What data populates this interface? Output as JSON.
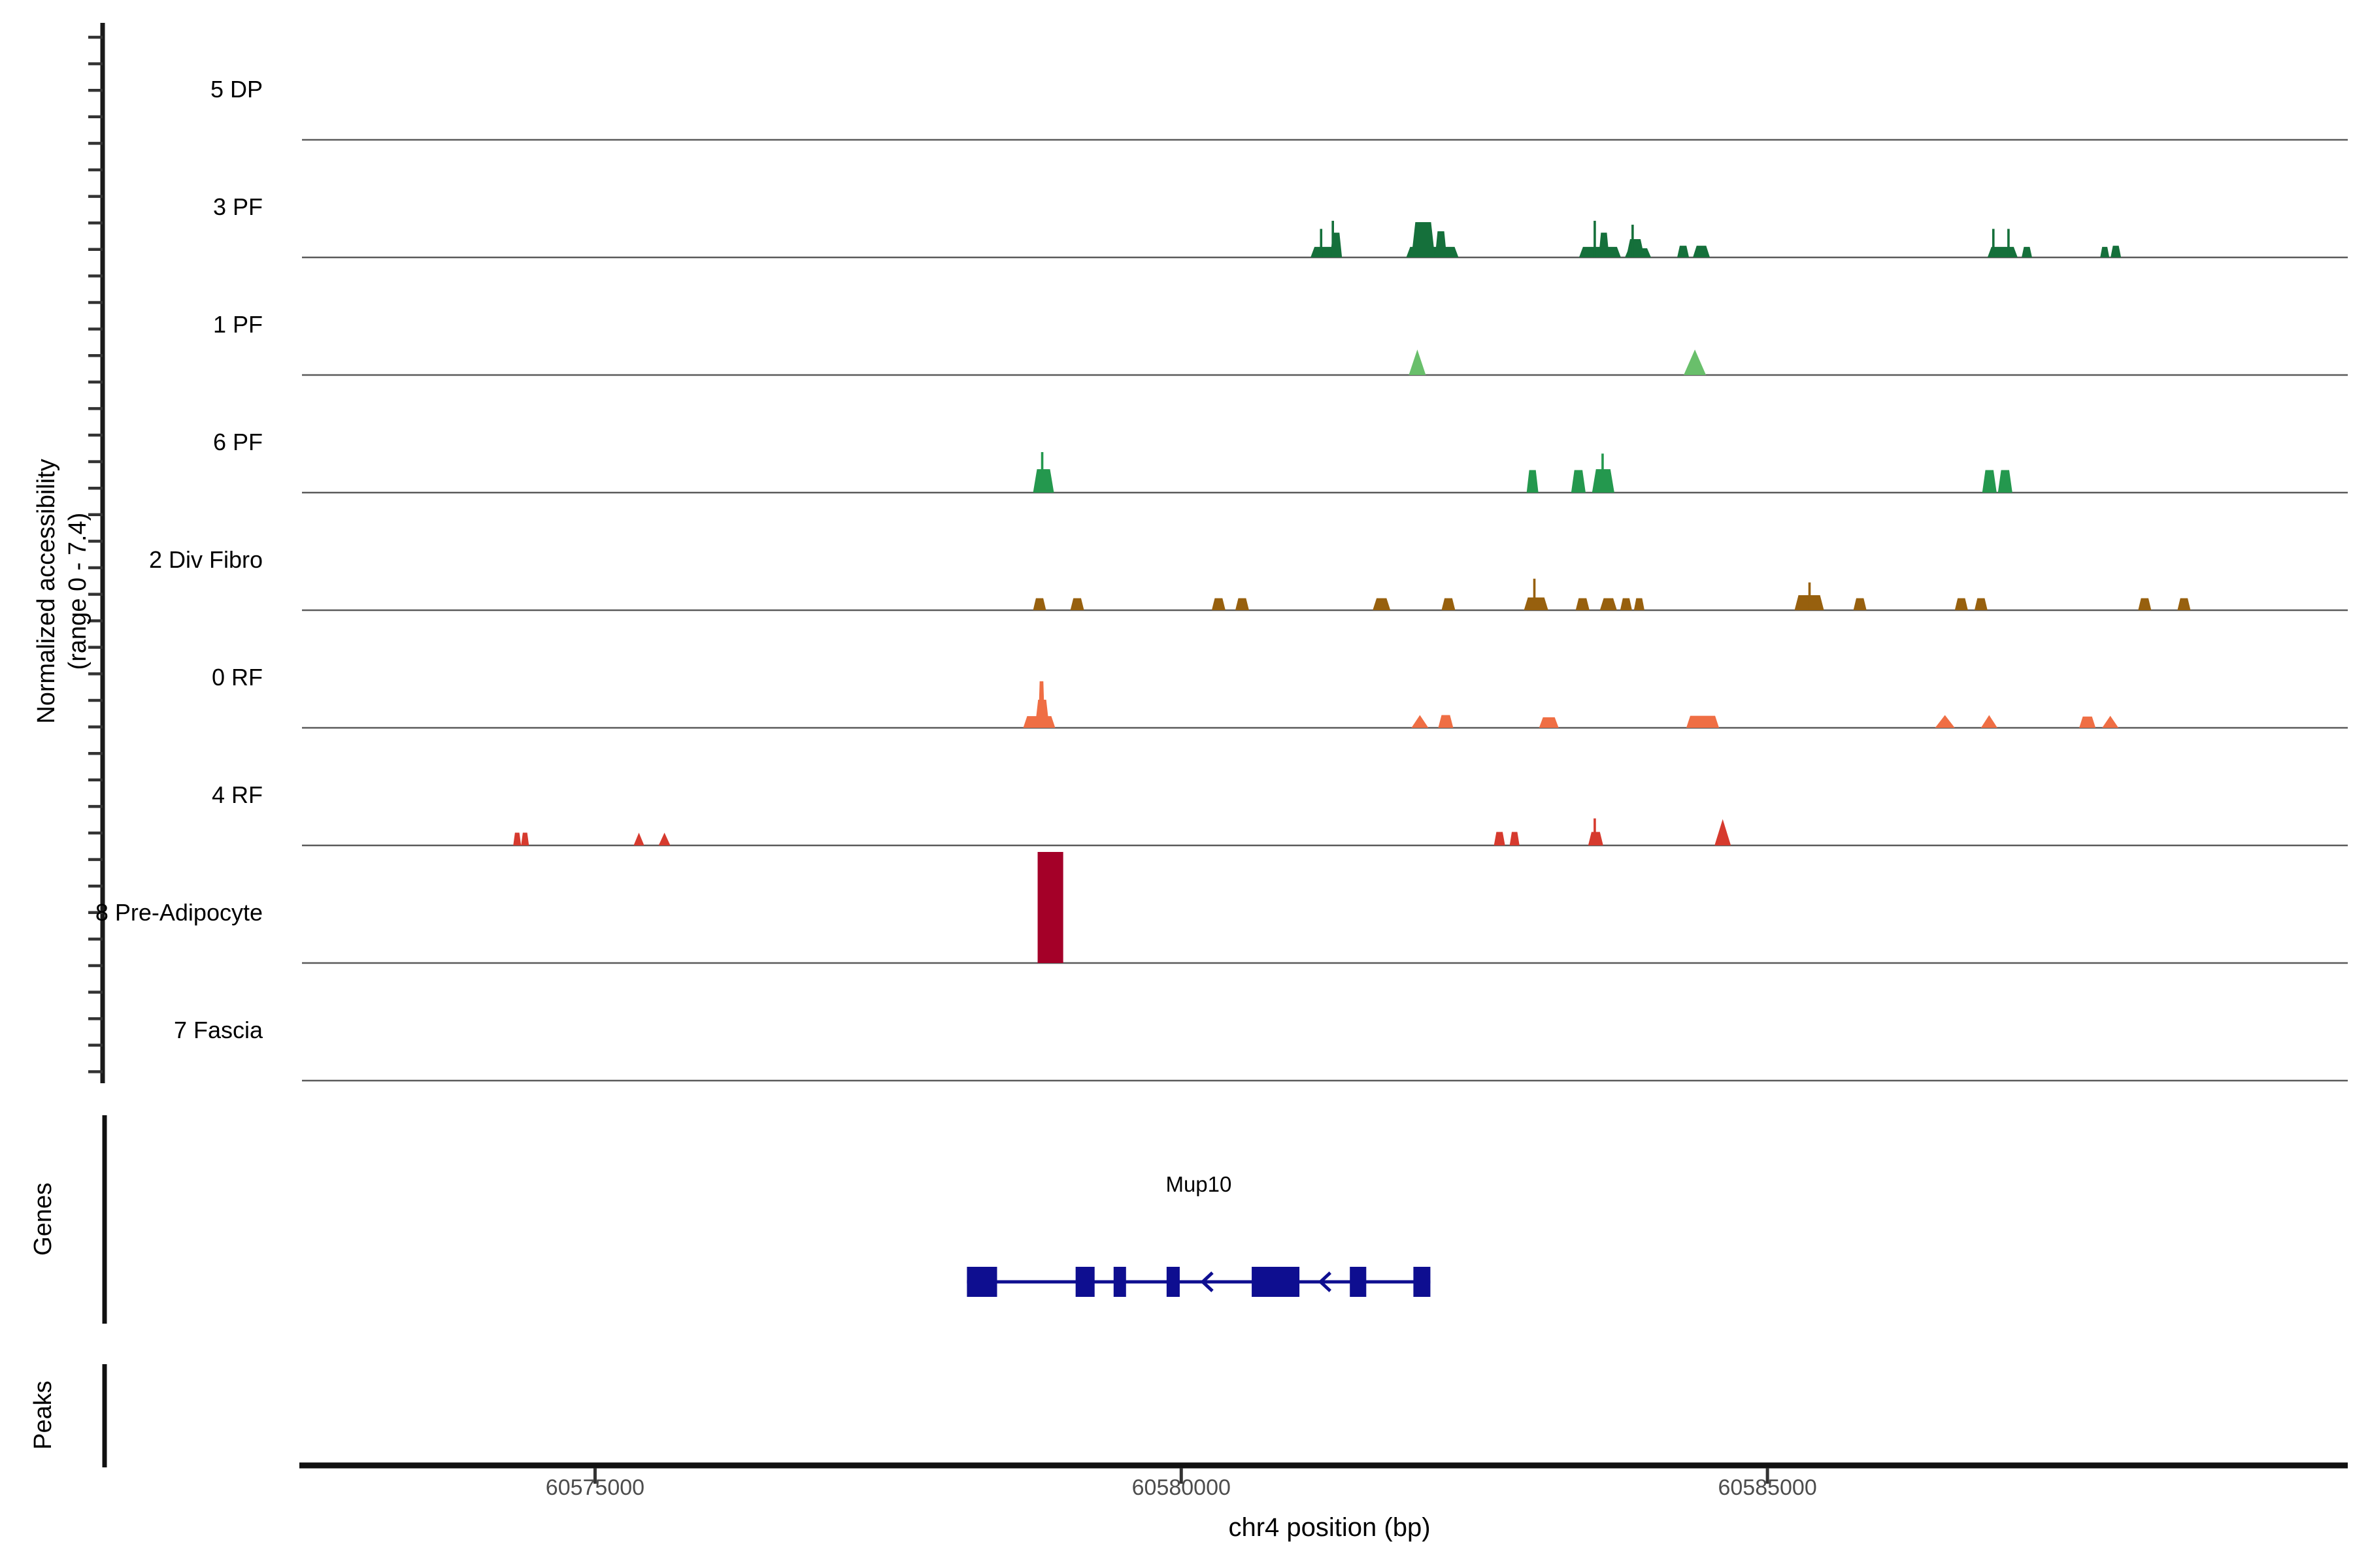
{
  "chart_data": {
    "type": "genome-tracks",
    "region": {
      "chrom": "chr4",
      "start": 60572500,
      "end": 60589950
    },
    "xaxis": {
      "title": "chr4 position (bp)",
      "ticks": [
        60575000,
        60580000,
        60585000
      ],
      "tick_labels": [
        "60575000",
        "60580000",
        "60585000"
      ]
    },
    "yaxis": {
      "label_line1": "Normalized accessibility",
      "label_line2": "(range 0 - 7.4)",
      "range": [
        0,
        7.4
      ]
    },
    "sections": {
      "genes_label": "Genes",
      "peaks_label": "Peaks"
    },
    "tracks": [
      {
        "label": "5 DP",
        "color": "#0c5f33",
        "peaks": []
      },
      {
        "label": "3 PF",
        "color": "#15703b",
        "peaks": [
          {
            "t": "rect",
            "s": 60581103,
            "e": 60581371,
            "v": 0.7
          },
          {
            "t": "rect",
            "s": 60581271,
            "e": 60581371,
            "v": 1.65
          },
          {
            "t": "spike",
            "p": 60581193,
            "v": 1.9
          },
          {
            "t": "spike",
            "p": 60581293,
            "v": 2.44
          },
          {
            "t": "rect",
            "s": 60581919,
            "e": 60582365,
            "v": 0.7
          },
          {
            "t": "rect",
            "s": 60581963,
            "e": 60582164,
            "v": 2.35
          },
          {
            "t": "rect",
            "s": 60582164,
            "e": 60582265,
            "v": 1.74
          },
          {
            "t": "rect",
            "s": 60583393,
            "e": 60583750,
            "v": 0.7
          },
          {
            "t": "rect",
            "s": 60583560,
            "e": 60583650,
            "v": 1.65
          },
          {
            "t": "spike",
            "p": 60583527,
            "v": 2.44
          },
          {
            "t": "rect",
            "s": 60583784,
            "e": 60584007,
            "v": 0.61
          },
          {
            "t": "rect",
            "s": 60583795,
            "e": 60583951,
            "v": 1.22
          },
          {
            "t": "spike",
            "p": 60583850,
            "v": 2.18
          },
          {
            "t": "rect",
            "s": 60584230,
            "e": 60584331,
            "v": 0.78
          },
          {
            "t": "rect",
            "s": 60584364,
            "e": 60584509,
            "v": 0.78
          },
          {
            "t": "rect",
            "s": 60586877,
            "e": 60587134,
            "v": 0.7
          },
          {
            "t": "spike",
            "p": 60586927,
            "v": 1.9
          },
          {
            "t": "spike",
            "p": 60587056,
            "v": 1.9
          },
          {
            "t": "rect",
            "s": 60587168,
            "e": 60587257,
            "v": 0.7
          },
          {
            "t": "rect",
            "s": 60587838,
            "e": 60587916,
            "v": 0.7
          },
          {
            "t": "rect",
            "s": 60587927,
            "e": 60588016,
            "v": 0.78
          }
        ]
      },
      {
        "label": "1 PF",
        "color": "#69bf6b",
        "peaks": [
          {
            "t": "tri",
            "s": 60581941,
            "e": 60582086,
            "v": 1.7
          },
          {
            "t": "tri",
            "s": 60584286,
            "e": 60584476,
            "v": 1.7
          }
        ]
      },
      {
        "label": "6 PF",
        "color": "#24984e",
        "peaks": [
          {
            "t": "rect",
            "s": 60578736,
            "e": 60578914,
            "v": 1.56
          },
          {
            "t": "spike",
            "p": 60578814,
            "v": 2.7
          },
          {
            "t": "rect",
            "s": 60582946,
            "e": 60583046,
            "v": 1.5
          },
          {
            "t": "rect",
            "s": 60583326,
            "e": 60583449,
            "v": 1.5
          },
          {
            "t": "rect",
            "s": 60583504,
            "e": 60583694,
            "v": 1.56
          },
          {
            "t": "spike",
            "p": 60583594,
            "v": 2.6
          },
          {
            "t": "rect",
            "s": 60586832,
            "e": 60586955,
            "v": 1.5
          },
          {
            "t": "rect",
            "s": 60586966,
            "e": 60587089,
            "v": 1.5
          }
        ]
      },
      {
        "label": "2 Div Fibro",
        "color": "#97600e",
        "peaks": [
          {
            "t": "rect",
            "s": 60578736,
            "e": 60578847,
            "v": 0.8
          },
          {
            "t": "rect",
            "s": 60579054,
            "e": 60579171,
            "v": 0.8
          },
          {
            "t": "rect",
            "s": 60580260,
            "e": 60580377,
            "v": 0.8
          },
          {
            "t": "rect",
            "s": 60580461,
            "e": 60580578,
            "v": 0.8
          },
          {
            "t": "rect",
            "s": 60581633,
            "e": 60581784,
            "v": 0.8
          },
          {
            "t": "rect",
            "s": 60582220,
            "e": 60582337,
            "v": 0.8
          },
          {
            "t": "rect",
            "s": 60582923,
            "e": 60583130,
            "v": 0.85
          },
          {
            "t": "spike",
            "p": 60583012,
            "v": 2.1
          },
          {
            "t": "rect",
            "s": 60583364,
            "e": 60583482,
            "v": 0.8
          },
          {
            "t": "rect",
            "s": 60583571,
            "e": 60583716,
            "v": 0.8
          },
          {
            "t": "rect",
            "s": 60583744,
            "e": 60583845,
            "v": 0.8
          },
          {
            "t": "rect",
            "s": 60583861,
            "e": 60583951,
            "v": 0.8
          },
          {
            "t": "rect",
            "s": 60585231,
            "e": 60585482,
            "v": 1.0
          },
          {
            "t": "spike",
            "p": 60585359,
            "v": 1.85
          },
          {
            "t": "rect",
            "s": 60585733,
            "e": 60585845,
            "v": 0.8
          },
          {
            "t": "rect",
            "s": 60586598,
            "e": 60586710,
            "v": 0.8
          },
          {
            "t": "rect",
            "s": 60586766,
            "e": 60586877,
            "v": 0.8
          },
          {
            "t": "rect",
            "s": 60588162,
            "e": 60588274,
            "v": 0.8
          },
          {
            "t": "rect",
            "s": 60588497,
            "e": 60588609,
            "v": 0.8
          }
        ]
      },
      {
        "label": "0 RF",
        "color": "#ef6e44",
        "peaks": [
          {
            "t": "rect",
            "s": 60578652,
            "e": 60578925,
            "v": 0.78
          },
          {
            "t": "rect",
            "s": 60578752,
            "e": 60578875,
            "v": 1.87
          },
          {
            "t": "rect",
            "s": 60578780,
            "e": 60578836,
            "v": 3.1
          },
          {
            "t": "tri",
            "s": 60581963,
            "e": 60582108,
            "v": 0.85
          },
          {
            "t": "rect",
            "s": 60582192,
            "e": 60582320,
            "v": 0.85
          },
          {
            "t": "rect",
            "s": 60583052,
            "e": 60583219,
            "v": 0.7
          },
          {
            "t": "rect",
            "s": 60584308,
            "e": 60584587,
            "v": 0.8
          },
          {
            "t": "tri",
            "s": 60586430,
            "e": 60586598,
            "v": 0.85
          },
          {
            "t": "tri",
            "s": 60586821,
            "e": 60586961,
            "v": 0.85
          },
          {
            "t": "rect",
            "s": 60587659,
            "e": 60587799,
            "v": 0.75
          },
          {
            "t": "tri",
            "s": 60587855,
            "e": 60587994,
            "v": 0.8
          }
        ]
      },
      {
        "label": "4 RF",
        "color": "#d63a2e",
        "peaks": [
          {
            "t": "rect",
            "s": 60574302,
            "e": 60574369,
            "v": 0.85
          },
          {
            "t": "rect",
            "s": 60574369,
            "e": 60574436,
            "v": 0.85
          },
          {
            "t": "tri",
            "s": 60575329,
            "e": 60575419,
            "v": 0.85
          },
          {
            "t": "tri",
            "s": 60575542,
            "e": 60575642,
            "v": 0.85
          },
          {
            "t": "rect",
            "s": 60582667,
            "e": 60582762,
            "v": 0.9
          },
          {
            "t": "rect",
            "s": 60582801,
            "e": 60582885,
            "v": 0.9
          },
          {
            "t": "rect",
            "s": 60583471,
            "e": 60583599,
            "v": 0.9
          },
          {
            "t": "spike",
            "p": 60583527,
            "v": 1.8
          },
          {
            "t": "tri",
            "s": 60584549,
            "e": 60584688,
            "v": 1.75
          }
        ]
      },
      {
        "label": "8 Pre-Adipocyte",
        "color": "#a40028",
        "peaks": [
          {
            "t": "bar",
            "s": 60578775,
            "e": 60578993,
            "v": 7.4
          }
        ]
      },
      {
        "label": "7 Fascia",
        "color": "#8c1b2a",
        "peaks": []
      }
    ],
    "genes": [
      {
        "name": "Mup10",
        "strand": "-",
        "start": 60578172,
        "end": 60582125,
        "color": "#0e0e90",
        "exons": [
          [
            60578172,
            60578429
          ],
          [
            60579099,
            60579261
          ],
          [
            60579423,
            60579529
          ],
          [
            60579875,
            60579987
          ],
          [
            60580601,
            60581008
          ],
          [
            60581438,
            60581578
          ],
          [
            60581980,
            60582125
          ]
        ],
        "arrows": [
          60580188,
          60581193
        ]
      }
    ],
    "peaks_track": []
  }
}
